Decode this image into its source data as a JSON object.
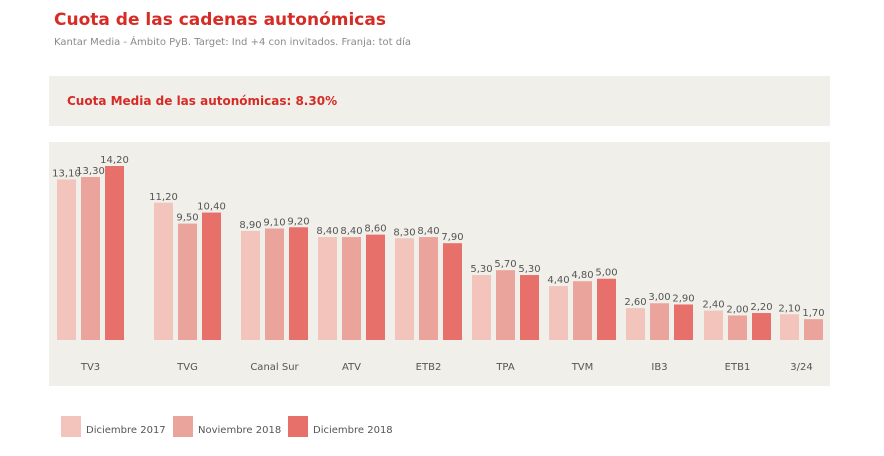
{
  "title": "Cuota de las cadenas autonómicas",
  "subtitle": "Kantar Media - Ámbito PyB. Target: Ind +4 con invitados. Franja: tot día",
  "average_label": "Cuota Media de las autonómicas: 8.30%",
  "chart_data": {
    "type": "bar",
    "categories": [
      "TV3",
      "TVG",
      "Canal Sur",
      "ATV",
      "ETB2",
      "TPA",
      "TVM",
      "IB3",
      "ETB1",
      "3/24"
    ],
    "series": [
      {
        "name": "Diciembre 2017",
        "color": "#f2c4bc",
        "values": [
          13.1,
          11.2,
          8.9,
          8.4,
          8.3,
          5.3,
          4.4,
          2.6,
          2.4,
          2.1
        ],
        "labels": [
          "13,10",
          "11,20",
          "8,90",
          "8,40",
          "8,30",
          "5,30",
          "4,40",
          "2,60",
          "2,40",
          "2,10"
        ]
      },
      {
        "name": "Noviembre 2018",
        "color": "#eba49b",
        "values": [
          13.3,
          9.5,
          9.1,
          8.4,
          8.4,
          5.7,
          4.8,
          3.0,
          2.0,
          1.7
        ],
        "labels": [
          "13,30",
          "9,50",
          "9,10",
          "8,40",
          "8,40",
          "5,70",
          "4,80",
          "3,00",
          "2,00",
          "1,70"
        ]
      },
      {
        "name": "Diciembre 2018",
        "color": "#e8706a",
        "values": [
          14.2,
          10.4,
          9.2,
          8.6,
          7.9,
          5.3,
          5.0,
          2.9,
          2.2,
          null
        ],
        "labels": [
          "14,20",
          "10,40",
          "9,20",
          "8,60",
          "7,90",
          "5,30",
          "5,00",
          "2,90",
          "2,20",
          ""
        ]
      }
    ],
    "ylim": [
      0,
      14.2
    ],
    "grid": false,
    "legend_position": "bottom-left"
  },
  "legend": [
    {
      "label": "Diciembre 2017",
      "color": "#f2c4bc"
    },
    {
      "label": "Noviembre 2018",
      "color": "#eba49b"
    },
    {
      "label": "Diciembre 2018",
      "color": "#e8706a"
    }
  ]
}
